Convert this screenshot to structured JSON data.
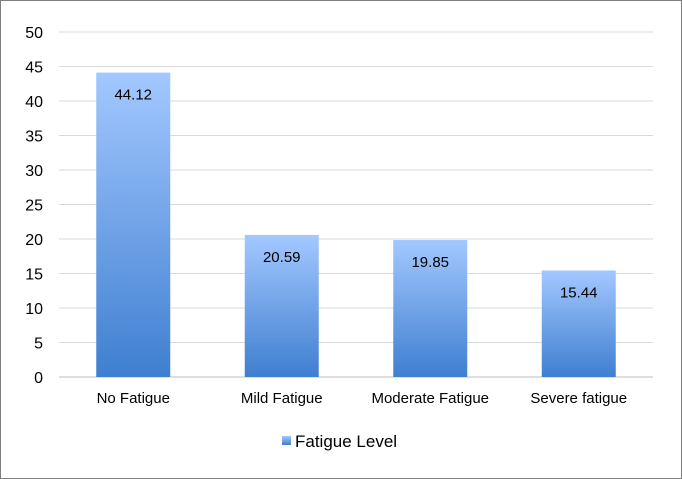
{
  "chart_data": {
    "type": "bar",
    "title": "",
    "xlabel": "",
    "ylabel": "",
    "categories": [
      "No Fatigue",
      "Mild Fatigue",
      "Moderate Fatigue",
      "Severe fatigue"
    ],
    "series": [
      {
        "name": "Fatigue Level",
        "values": [
          44.12,
          20.59,
          19.85,
          15.44
        ]
      }
    ],
    "data_labels": [
      "44.12",
      "20.59",
      "19.85",
      "15.44"
    ],
    "yticks": [
      0,
      5,
      10,
      15,
      20,
      25,
      30,
      35,
      40,
      45,
      50
    ],
    "ylim": [
      0,
      50
    ],
    "grid": true,
    "legend_position": "bottom",
    "colors": {
      "bar_top": "#a3c8ff",
      "bar_bottom": "#3f7fd0",
      "grid": "#d9d9d9",
      "axis": "#bfbfbf"
    }
  }
}
